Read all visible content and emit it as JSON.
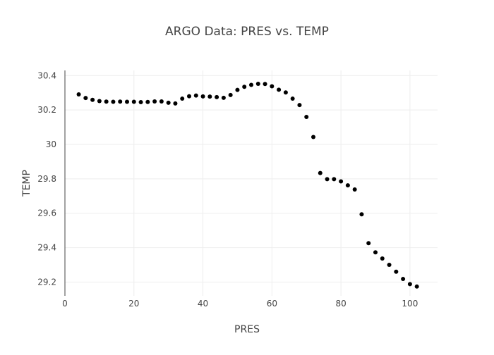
{
  "chart_data": {
    "type": "scatter",
    "title": "ARGO Data: PRES vs. TEMP",
    "xlabel": "PRES",
    "ylabel": "TEMP",
    "xlim": [
      0,
      108
    ],
    "ylim": [
      29.12,
      30.43
    ],
    "x_ticks": [
      0,
      20,
      40,
      60,
      80,
      100
    ],
    "x_tick_labels": [
      "0",
      "20",
      "40",
      "60",
      "80",
      "100"
    ],
    "y_ticks": [
      29.2,
      29.4,
      29.6,
      29.8,
      30.0,
      30.2,
      30.4
    ],
    "y_tick_labels": [
      "29.2",
      "29.4",
      "29.6",
      "29.8",
      "30",
      "30.2",
      "30.4"
    ],
    "grid": true,
    "marker_color": "#000000",
    "series": [
      {
        "x": [
          4,
          6,
          8,
          10,
          12,
          14,
          16,
          18,
          20,
          22,
          24,
          26,
          28,
          30,
          32,
          34,
          36,
          38,
          40,
          42,
          44,
          46,
          48,
          50,
          52,
          54,
          56,
          58,
          60,
          62,
          64,
          66,
          68,
          70,
          72,
          74,
          76,
          78,
          80,
          82,
          84,
          86,
          88,
          90,
          92,
          94,
          96,
          98,
          100,
          102
        ],
        "y": [
          30.291,
          30.27,
          30.259,
          30.252,
          30.249,
          30.248,
          30.249,
          30.248,
          30.248,
          30.246,
          30.247,
          30.25,
          30.25,
          30.242,
          30.238,
          30.266,
          30.28,
          30.284,
          30.279,
          30.278,
          30.275,
          30.271,
          30.287,
          30.317,
          30.335,
          30.346,
          30.352,
          30.351,
          30.338,
          30.318,
          30.302,
          30.266,
          30.229,
          30.16,
          30.043,
          29.834,
          29.798,
          29.798,
          29.785,
          29.762,
          29.738,
          29.594,
          29.426,
          29.373,
          29.337,
          29.3,
          29.26,
          29.218,
          29.188,
          29.174
        ]
      }
    ]
  }
}
